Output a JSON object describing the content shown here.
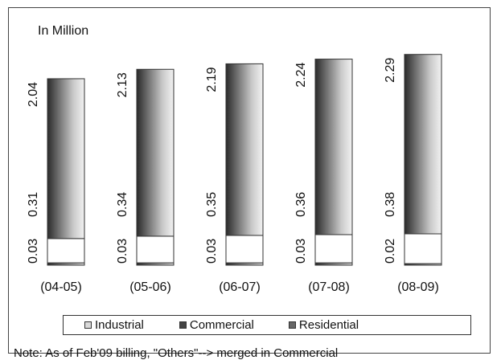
{
  "chart_data": {
    "type": "bar",
    "stacked": true,
    "unit_label": "In Million",
    "categories": [
      "(04-05)",
      "(05-06)",
      "(06-07)",
      "(07-08)",
      "(08-09)"
    ],
    "series": [
      {
        "name": "Industrial",
        "values": [
          0.03,
          0.03,
          0.03,
          0.03,
          0.02
        ],
        "color": "#e6e6e6"
      },
      {
        "name": "Commercial",
        "values": [
          0.31,
          0.34,
          0.35,
          0.36,
          0.38
        ],
        "color": "#ffffff"
      },
      {
        "name": "Residential",
        "values": [
          2.04,
          2.13,
          2.19,
          2.24,
          2.29
        ],
        "color": "#7a7a7a"
      }
    ],
    "ylim": [
      0,
      2.7
    ],
    "grid": false,
    "legend_position": "bottom",
    "note": "Note: As of Feb'09 billing,  \"Others\"--> merged in Commercial"
  }
}
